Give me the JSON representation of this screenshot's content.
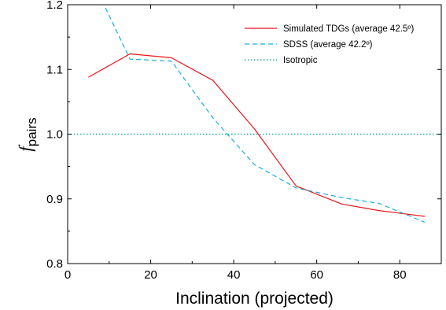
{
  "chart_data": {
    "type": "line",
    "xlabel": "Inclination (projected)",
    "ylabel_main": "f",
    "ylabel_sub": "pairs",
    "xlim": [
      0,
      90
    ],
    "ylim": [
      0.8,
      1.2
    ],
    "xticks": [
      0,
      20,
      40,
      60,
      80
    ],
    "yticks": [
      0.8,
      0.9,
      1.0,
      1.1,
      1.2
    ],
    "xtick_labels": [
      "0",
      "20",
      "40",
      "60",
      "80"
    ],
    "ytick_labels": [
      "0.8",
      "0.9",
      "1.0",
      "1.1",
      "1.2"
    ],
    "grid": false,
    "legend_position": "top-right",
    "series": [
      {
        "name": "Simulated TDGs (average 42.5º)",
        "color": "#e8141c",
        "style": "solid",
        "x": [
          5,
          15,
          25,
          35,
          45,
          55,
          66,
          75,
          86
        ],
        "y": [
          1.088,
          1.124,
          1.118,
          1.083,
          1.008,
          0.92,
          0.892,
          0.882,
          0.873
        ]
      },
      {
        "name": "SDSS (average 42.2º)",
        "color": "#1aaee0",
        "style": "dashed",
        "x": [
          5,
          15,
          25,
          35,
          45,
          55,
          66,
          75,
          86
        ],
        "y": [
          1.25,
          1.116,
          1.113,
          1.025,
          0.953,
          0.917,
          0.902,
          0.893,
          0.864
        ]
      },
      {
        "name": "Isotropic",
        "color": "#00a097",
        "style": "dotted",
        "x": [
          0,
          90
        ],
        "y": [
          1.0,
          1.0
        ]
      }
    ]
  }
}
